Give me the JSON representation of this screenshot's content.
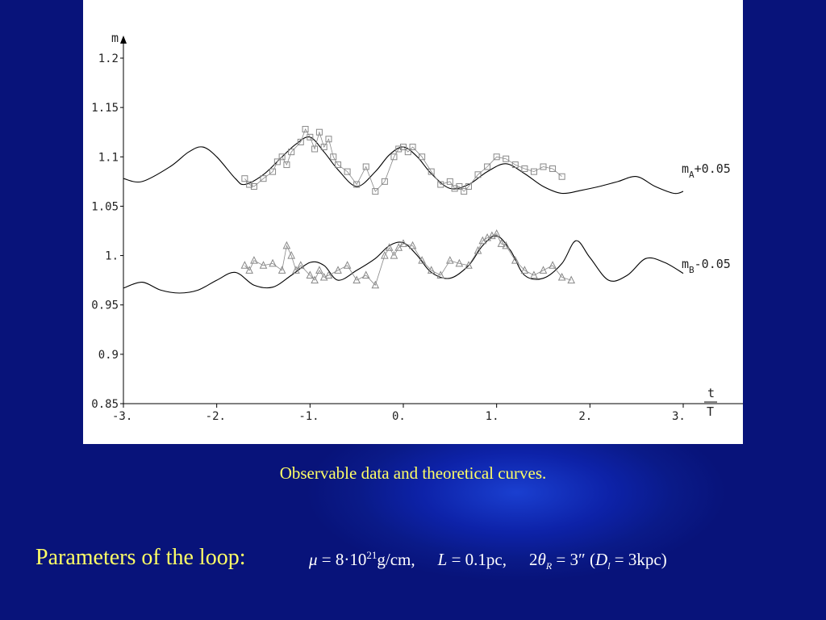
{
  "slide": {
    "caption": "Observable data and theoretical curves.",
    "params_label": "Parameters of the loop:",
    "formula": {
      "mu_sym": "μ",
      "mu_eq": " = 8·10",
      "mu_exp": "21",
      "mu_unit": "g/cm,",
      "L_sym": "L",
      "L_eq": " = 0.1pc,",
      "theta_pre": "2",
      "theta_sym": "θ",
      "theta_sub": "R",
      "theta_eq": " = 3″ (",
      "D_sym": "D",
      "D_sub": "l",
      "D_eq": " = 3kpc)"
    },
    "colors": {
      "background": "#0a1a88",
      "caption": "#ffff66",
      "formula": "#ffffff",
      "plot_bg": "#ffffff",
      "curve": "#000000",
      "data_marks": "#888888"
    }
  },
  "chart_data": {
    "type": "line",
    "title": "",
    "ylabel": "m",
    "xlabel_num": "t",
    "xlabel_den": "T",
    "xlim": [
      -3,
      3
    ],
    "ylim": [
      0.85,
      1.2
    ],
    "x_ticks": [
      -3,
      -2,
      -1,
      0,
      1,
      2,
      3
    ],
    "x_tick_labels": [
      "-3.",
      "-2.",
      "-1.",
      "0.",
      "1.",
      "2.",
      "3."
    ],
    "y_ticks": [
      0.85,
      0.9,
      0.95,
      1,
      1.05,
      1.1,
      1.15,
      1.2
    ],
    "y_tick_labels": [
      "0.85",
      "0.9",
      "0.95",
      "1.",
      "1.05",
      "1.1",
      "1.15",
      "1.2"
    ],
    "grid": false,
    "series": [
      {
        "name": "mA+0.05",
        "label_main": "m",
        "label_sub": "A",
        "label_rest": "+0.05",
        "kind": "theory",
        "x": [
          -3.0,
          -2.8,
          -2.5,
          -2.3,
          -2.15,
          -2.0,
          -1.8,
          -1.7,
          -1.5,
          -1.3,
          -1.15,
          -1.0,
          -0.85,
          -0.7,
          -0.5,
          -0.3,
          -0.15,
          0.0,
          0.15,
          0.3,
          0.5,
          0.7,
          0.9,
          1.1,
          1.3,
          1.5,
          1.7,
          1.9,
          2.1,
          2.3,
          2.5,
          2.7,
          2.9,
          3.0
        ],
        "y": [
          1.078,
          1.075,
          1.09,
          1.105,
          1.11,
          1.1,
          1.078,
          1.072,
          1.082,
          1.1,
          1.113,
          1.12,
          1.105,
          1.087,
          1.07,
          1.085,
          1.102,
          1.11,
          1.1,
          1.083,
          1.068,
          1.072,
          1.085,
          1.093,
          1.083,
          1.07,
          1.063,
          1.066,
          1.07,
          1.075,
          1.08,
          1.07,
          1.063,
          1.065
        ]
      },
      {
        "name": "mB-0.05",
        "label_main": "m",
        "label_sub": "B",
        "label_rest": "-0.05",
        "kind": "theory",
        "x": [
          -3.0,
          -2.8,
          -2.6,
          -2.4,
          -2.2,
          -2.0,
          -1.8,
          -1.6,
          -1.4,
          -1.2,
          -1.0,
          -0.85,
          -0.7,
          -0.5,
          -0.3,
          -0.15,
          0.0,
          0.15,
          0.3,
          0.5,
          0.7,
          0.85,
          1.0,
          1.15,
          1.3,
          1.5,
          1.7,
          1.85,
          2.0,
          2.2,
          2.4,
          2.6,
          2.8,
          3.0
        ],
        "y": [
          0.967,
          0.973,
          0.965,
          0.962,
          0.965,
          0.975,
          0.983,
          0.97,
          0.968,
          0.98,
          0.993,
          0.99,
          0.975,
          0.985,
          0.997,
          1.01,
          1.013,
          1.0,
          0.983,
          0.977,
          0.99,
          1.01,
          1.02,
          1.005,
          0.98,
          0.977,
          0.992,
          1.015,
          0.998,
          0.975,
          0.98,
          0.997,
          0.993,
          0.982
        ]
      },
      {
        "name": "A data",
        "kind": "observed",
        "marker": "square",
        "x": [
          -1.7,
          -1.65,
          -1.6,
          -1.5,
          -1.4,
          -1.35,
          -1.3,
          -1.25,
          -1.2,
          -1.1,
          -1.05,
          -1.0,
          -0.95,
          -0.9,
          -0.85,
          -0.8,
          -0.75,
          -0.7,
          -0.6,
          -0.5,
          -0.4,
          -0.3,
          -0.2,
          -0.1,
          -0.05,
          0.0,
          0.05,
          0.1,
          0.2,
          0.3,
          0.4,
          0.5,
          0.55,
          0.6,
          0.65,
          0.7,
          0.8,
          0.9,
          1.0,
          1.1,
          1.2,
          1.3,
          1.4,
          1.5,
          1.6,
          1.7
        ],
        "y": [
          1.078,
          1.072,
          1.07,
          1.078,
          1.085,
          1.095,
          1.1,
          1.092,
          1.105,
          1.115,
          1.128,
          1.12,
          1.108,
          1.125,
          1.11,
          1.118,
          1.1,
          1.092,
          1.085,
          1.072,
          1.09,
          1.065,
          1.075,
          1.1,
          1.108,
          1.11,
          1.105,
          1.11,
          1.1,
          1.085,
          1.072,
          1.075,
          1.068,
          1.07,
          1.065,
          1.07,
          1.082,
          1.09,
          1.1,
          1.098,
          1.092,
          1.088,
          1.085,
          1.09,
          1.088,
          1.08
        ]
      },
      {
        "name": "B data",
        "kind": "observed",
        "marker": "triangle",
        "x": [
          -1.7,
          -1.65,
          -1.6,
          -1.5,
          -1.4,
          -1.3,
          -1.25,
          -1.2,
          -1.15,
          -1.1,
          -1.0,
          -0.95,
          -0.9,
          -0.85,
          -0.8,
          -0.7,
          -0.6,
          -0.5,
          -0.4,
          -0.3,
          -0.2,
          -0.15,
          -0.1,
          -0.05,
          0.0,
          0.1,
          0.2,
          0.3,
          0.4,
          0.5,
          0.6,
          0.7,
          0.8,
          0.85,
          0.9,
          0.95,
          1.0,
          1.05,
          1.1,
          1.2,
          1.3,
          1.4,
          1.5,
          1.6,
          1.7,
          1.8
        ],
        "y": [
          0.99,
          0.985,
          0.995,
          0.99,
          0.992,
          0.985,
          1.01,
          1.0,
          0.985,
          0.99,
          0.98,
          0.975,
          0.985,
          0.978,
          0.98,
          0.985,
          0.99,
          0.975,
          0.98,
          0.97,
          1.0,
          1.008,
          1.0,
          1.008,
          1.012,
          1.01,
          0.995,
          0.985,
          0.98,
          0.995,
          0.992,
          0.99,
          1.005,
          1.015,
          1.018,
          1.02,
          1.022,
          1.012,
          1.01,
          0.995,
          0.985,
          0.98,
          0.985,
          0.99,
          0.978,
          0.975
        ]
      }
    ]
  }
}
